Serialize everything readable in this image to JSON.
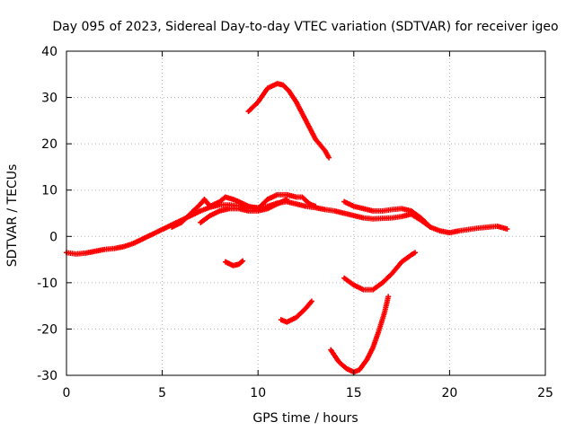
{
  "chart_data": {
    "type": "scatter",
    "title": "Day 095 of 2023, Sidereal Day-to-day VTEC variation (SDTVAR) for receiver igeo",
    "xlabel": "GPS time / hours",
    "ylabel": "SDTVAR / TECUs",
    "xlim": [
      0,
      25
    ],
    "ylim": [
      -30,
      40
    ],
    "xticks": [
      0,
      5,
      10,
      15,
      20,
      25
    ],
    "yticks": [
      -30,
      -20,
      -10,
      0,
      10,
      20,
      30,
      40
    ],
    "grid": true,
    "marker": "plus",
    "series_color": "#ff0000",
    "series": [
      {
        "name": "track-1",
        "points": [
          [
            0,
            -3.5
          ],
          [
            0.5,
            -3.8
          ],
          [
            1,
            -3.6
          ],
          [
            1.5,
            -3.2
          ],
          [
            2,
            -2.8
          ],
          [
            2.5,
            -2.6
          ],
          [
            3,
            -2.2
          ],
          [
            3.5,
            -1.5
          ],
          [
            4,
            -0.5
          ],
          [
            4.5,
            0.5
          ],
          [
            5,
            1.5
          ],
          [
            5.5,
            2.5
          ],
          [
            6,
            3.5
          ],
          [
            6.5,
            4.5
          ],
          [
            7,
            5.5
          ],
          [
            7.5,
            6.3
          ],
          [
            8,
            6.8
          ],
          [
            8.5,
            6.8
          ],
          [
            9,
            6.6
          ],
          [
            9.5,
            6.4
          ],
          [
            10,
            6.2
          ],
          [
            10.5,
            6.5
          ],
          [
            11,
            7.2
          ],
          [
            11.5,
            7.5
          ],
          [
            12,
            7.0
          ],
          [
            12.5,
            6.5
          ],
          [
            13,
            6.2
          ],
          [
            13.5,
            5.8
          ],
          [
            14,
            5.5
          ],
          [
            14.5,
            5.0
          ],
          [
            15,
            4.5
          ],
          [
            15.5,
            4.0
          ],
          [
            16,
            3.8
          ],
          [
            16.5,
            3.9
          ],
          [
            17,
            4.0
          ],
          [
            17.5,
            4.3
          ],
          [
            18,
            4.8
          ],
          [
            18.5,
            3.5
          ],
          [
            19,
            2.0
          ],
          [
            19.5,
            1.2
          ],
          [
            20,
            0.8
          ],
          [
            20.5,
            1.2
          ],
          [
            21,
            1.5
          ],
          [
            21.5,
            1.8
          ],
          [
            22,
            2.0
          ],
          [
            22.5,
            2.2
          ],
          [
            23,
            1.6
          ]
        ]
      },
      {
        "name": "track-2",
        "points": [
          [
            5.5,
            2.0
          ],
          [
            6,
            3.0
          ],
          [
            6.5,
            5.0
          ],
          [
            7,
            7.0
          ],
          [
            7.2,
            8.0
          ],
          [
            7.5,
            6.5
          ],
          [
            8,
            7.5
          ],
          [
            8.3,
            8.5
          ],
          [
            8.7,
            8.0
          ],
          [
            9,
            7.5
          ],
          [
            9.5,
            6.5
          ],
          [
            10,
            6.0
          ],
          [
            10.5,
            8.0
          ],
          [
            11,
            9.0
          ],
          [
            11.5,
            9.0
          ],
          [
            12,
            8.5
          ],
          [
            12.3,
            8.5
          ],
          [
            12.7,
            7.0
          ],
          [
            13,
            6.5
          ]
        ]
      },
      {
        "name": "track-3",
        "points": [
          [
            7,
            3.0
          ],
          [
            7.5,
            4.5
          ],
          [
            8,
            5.5
          ],
          [
            8.5,
            6.0
          ],
          [
            9,
            6.0
          ],
          [
            9.5,
            5.5
          ],
          [
            10,
            5.5
          ],
          [
            10.5,
            6.0
          ],
          [
            11,
            7.0
          ],
          [
            11.5,
            8.0
          ]
        ]
      },
      {
        "name": "track-4",
        "points": [
          [
            14.5,
            7.5
          ],
          [
            15,
            6.5
          ],
          [
            15.5,
            6.0
          ],
          [
            16,
            5.5
          ],
          [
            16.5,
            5.5
          ],
          [
            17,
            5.8
          ],
          [
            17.5,
            6.0
          ],
          [
            18,
            5.5
          ],
          [
            18.5,
            4.0
          ],
          [
            19,
            2.0
          ]
        ]
      },
      {
        "name": "track-5",
        "points": [
          [
            9.5,
            27.0
          ],
          [
            10,
            29.0
          ],
          [
            10.5,
            32.0
          ],
          [
            11,
            33.0
          ],
          [
            11.3,
            32.7
          ],
          [
            11.6,
            31.5
          ],
          [
            12,
            29.0
          ],
          [
            12.5,
            25.0
          ],
          [
            13,
            21.0
          ],
          [
            13.5,
            18.5
          ],
          [
            13.7,
            17.0
          ]
        ]
      },
      {
        "name": "track-6",
        "points": [
          [
            8.3,
            -5.5
          ],
          [
            8.7,
            -6.3
          ],
          [
            9.0,
            -6.0
          ],
          [
            9.2,
            -5.3
          ]
        ]
      },
      {
        "name": "track-7",
        "points": [
          [
            11.2,
            -18.0
          ],
          [
            11.5,
            -18.5
          ],
          [
            12.0,
            -17.5
          ],
          [
            12.5,
            -15.5
          ],
          [
            12.8,
            -14.0
          ]
        ]
      },
      {
        "name": "track-8",
        "points": [
          [
            14.5,
            -9.0
          ],
          [
            15,
            -10.5
          ],
          [
            15.5,
            -11.5
          ],
          [
            16,
            -11.5
          ],
          [
            16.5,
            -10.0
          ],
          [
            17,
            -8.0
          ],
          [
            17.5,
            -5.5
          ],
          [
            18,
            -4.0
          ],
          [
            18.2,
            -3.5
          ]
        ]
      },
      {
        "name": "track-9",
        "points": [
          [
            13.8,
            -24.5
          ],
          [
            14.2,
            -27.0
          ],
          [
            14.6,
            -28.5
          ],
          [
            15,
            -29.3
          ],
          [
            15.3,
            -28.8
          ],
          [
            15.7,
            -26.5
          ],
          [
            16,
            -24.0
          ],
          [
            16.3,
            -20.5
          ],
          [
            16.6,
            -16.5
          ],
          [
            16.8,
            -13.0
          ]
        ]
      }
    ]
  }
}
